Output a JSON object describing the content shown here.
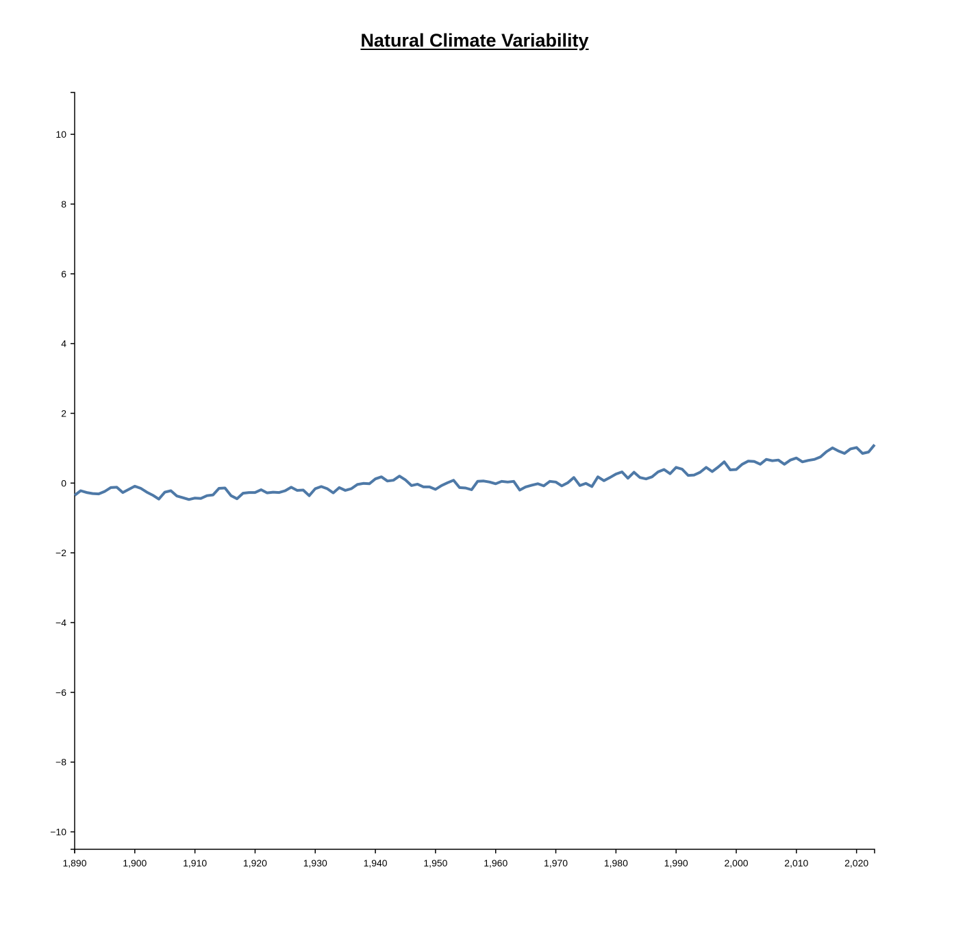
{
  "chart_data": {
    "type": "line",
    "title": "Natural Climate Variability",
    "xlabel": "",
    "ylabel": "",
    "xlim": [
      1890,
      2023
    ],
    "ylim": [
      -10.5,
      11.2
    ],
    "x_ticks": [
      1890,
      1900,
      1910,
      1920,
      1930,
      1940,
      1950,
      1960,
      1970,
      1980,
      1990,
      2000,
      2010,
      2020
    ],
    "x_tick_labels": [
      "1,890",
      "1,900",
      "1,910",
      "1,920",
      "1,930",
      "1,940",
      "1,950",
      "1,960",
      "1,970",
      "1,980",
      "1,990",
      "2,000",
      "2,010",
      "2,020"
    ],
    "y_ticks": [
      -10,
      -8,
      -6,
      -4,
      -2,
      0,
      2,
      4,
      6,
      8,
      10
    ],
    "y_tick_labels": [
      "−10",
      "−8",
      "−6",
      "−4",
      "−2",
      "0",
      "2",
      "4",
      "6",
      "8",
      "10"
    ],
    "grid": false,
    "line_color": "#4e79a7",
    "series": [
      {
        "x": [
          1890,
          1891,
          1892,
          1893,
          1894,
          1895,
          1896,
          1897,
          1898,
          1899,
          1900,
          1901,
          1902,
          1903,
          1904,
          1905,
          1906,
          1907,
          1908,
          1909,
          1910,
          1911,
          1912,
          1913,
          1914,
          1915,
          1916,
          1917,
          1918,
          1919,
          1920,
          1921,
          1922,
          1923,
          1924,
          1925,
          1926,
          1927,
          1928,
          1929,
          1930,
          1931,
          1932,
          1933,
          1934,
          1935,
          1936,
          1937,
          1938,
          1939,
          1940,
          1941,
          1942,
          1943,
          1944,
          1945,
          1946,
          1947,
          1948,
          1949,
          1950,
          1951,
          1952,
          1953,
          1954,
          1955,
          1956,
          1957,
          1958,
          1959,
          1960,
          1961,
          1962,
          1963,
          1964,
          1965,
          1966,
          1967,
          1968,
          1969,
          1970,
          1971,
          1972,
          1973,
          1974,
          1975,
          1976,
          1977,
          1978,
          1979,
          1980,
          1981,
          1982,
          1983,
          1984,
          1985,
          1986,
          1987,
          1988,
          1989,
          1990,
          1991,
          1992,
          1993,
          1994,
          1995,
          1996,
          1997,
          1998,
          1999,
          2000,
          2001,
          2002,
          2003,
          2004,
          2005,
          2006,
          2007,
          2008,
          2009,
          2010,
          2011,
          2012,
          2013,
          2014,
          2015,
          2016,
          2017,
          2018,
          2019,
          2020,
          2021,
          2022,
          2023
        ],
        "values": [
          -0.35,
          -0.22,
          -0.27,
          -0.3,
          -0.31,
          -0.24,
          -0.13,
          -0.12,
          -0.27,
          -0.18,
          -0.09,
          -0.15,
          -0.26,
          -0.35,
          -0.46,
          -0.26,
          -0.22,
          -0.37,
          -0.42,
          -0.47,
          -0.43,
          -0.44,
          -0.36,
          -0.34,
          -0.15,
          -0.14,
          -0.36,
          -0.45,
          -0.29,
          -0.27,
          -0.27,
          -0.19,
          -0.28,
          -0.26,
          -0.27,
          -0.22,
          -0.12,
          -0.21,
          -0.2,
          -0.36,
          -0.16,
          -0.1,
          -0.16,
          -0.28,
          -0.13,
          -0.21,
          -0.16,
          -0.04,
          -0.01,
          -0.02,
          0.12,
          0.18,
          0.06,
          0.08,
          0.2,
          0.09,
          -0.07,
          -0.03,
          -0.11,
          -0.11,
          -0.18,
          -0.07,
          0.01,
          0.08,
          -0.13,
          -0.14,
          -0.19,
          0.05,
          0.06,
          0.03,
          -0.02,
          0.05,
          0.03,
          0.05,
          -0.2,
          -0.11,
          -0.06,
          -0.02,
          -0.08,
          0.05,
          0.03,
          -0.08,
          0.01,
          0.16,
          -0.07,
          -0.01,
          -0.1,
          0.18,
          0.07,
          0.16,
          0.26,
          0.32,
          0.14,
          0.31,
          0.16,
          0.12,
          0.18,
          0.32,
          0.39,
          0.27,
          0.45,
          0.4,
          0.22,
          0.23,
          0.31,
          0.45,
          0.33,
          0.46,
          0.61,
          0.38,
          0.39,
          0.54,
          0.63,
          0.62,
          0.54,
          0.68,
          0.64,
          0.66,
          0.54,
          0.66,
          0.72,
          0.61,
          0.65,
          0.68,
          0.75,
          0.9,
          1.01,
          0.92,
          0.85,
          0.98,
          1.02,
          0.85,
          0.89,
          1.1
        ]
      }
    ]
  }
}
